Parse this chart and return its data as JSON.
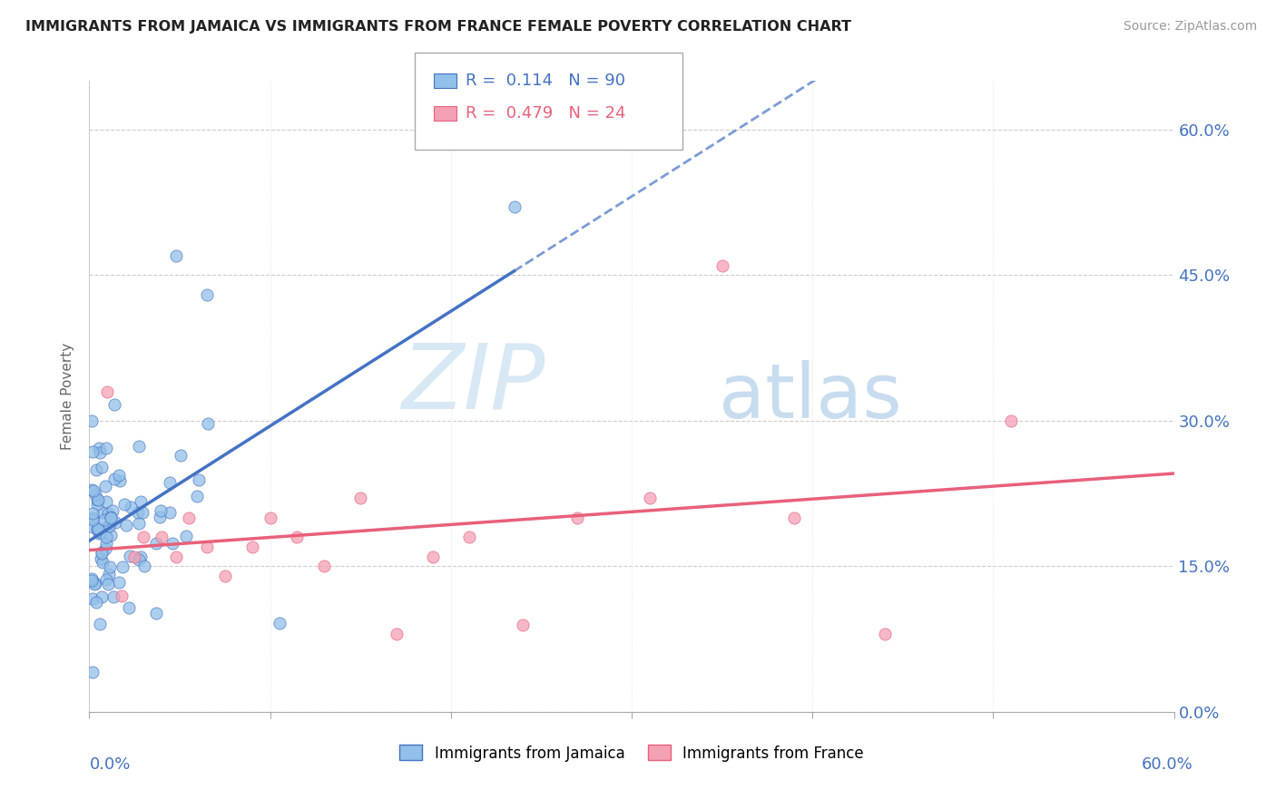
{
  "title": "IMMIGRANTS FROM JAMAICA VS IMMIGRANTS FROM FRANCE FEMALE POVERTY CORRELATION CHART",
  "source_text": "Source: ZipAtlas.com",
  "r_jamaica": 0.114,
  "n_jamaica": 90,
  "r_france": 0.479,
  "n_france": 24,
  "color_jamaica": "#92C0E8",
  "color_france": "#F4A0B5",
  "color_jamaica_line": "#4472C4",
  "color_france_line": "#E8607A",
  "color_text_blue": "#4472C4",
  "color_text_pink": "#E8607A",
  "watermark_zip": "ZIP",
  "watermark_atlas": "atlas",
  "yticks": [
    0.0,
    0.15,
    0.3,
    0.45,
    0.6
  ],
  "xlim": [
    0.0,
    0.6
  ],
  "ylim": [
    0.0,
    0.65
  ]
}
